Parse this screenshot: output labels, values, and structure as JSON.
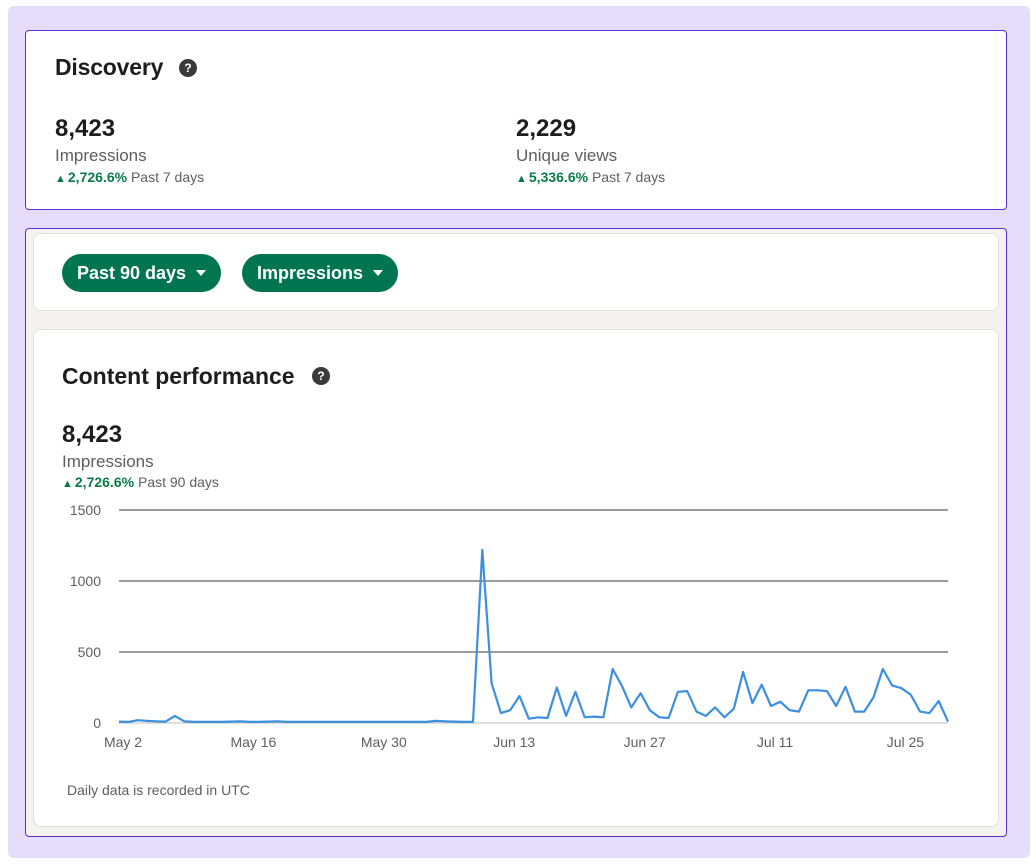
{
  "discovery": {
    "title": "Discovery",
    "help_icon": "question-circle-icon",
    "metrics": [
      {
        "value": "8,423",
        "label": "Impressions",
        "change": "2,726.6%",
        "period": "Past 7 days"
      },
      {
        "value": "2,229",
        "label": "Unique views",
        "change": "5,336.6%",
        "period": "Past 7 days"
      }
    ]
  },
  "filters": {
    "range_label": "Past 90 days",
    "metric_label": "Impressions",
    "dropdown_icon": "caret-down-icon"
  },
  "performance": {
    "title": "Content performance",
    "help_icon": "question-circle-icon",
    "value": "8,423",
    "label": "Impressions",
    "change": "2,726.6%",
    "period": "Past 90 days",
    "footnote": "Daily data is recorded in UTC"
  },
  "colors": {
    "accent_green": "#01754f",
    "positive_green": "#0a7a4a",
    "line_blue": "#3d8fe0",
    "frame_purple": "#5b2ed6",
    "background_lavender": "#e6dcfb"
  },
  "chart_data": {
    "type": "line",
    "x_tick_labels": [
      "May 2",
      "May 16",
      "May 30",
      "Jun 13",
      "Jun 27",
      "Jul 11",
      "Jul 25"
    ],
    "y_tick_labels": [
      "0",
      "500",
      "1000",
      "1500"
    ],
    "ylim": [
      0,
      1500
    ],
    "grid": "horizontal",
    "series": [
      {
        "values": [
          10,
          8,
          20,
          15,
          12,
          10,
          50,
          12,
          8,
          8,
          8,
          8,
          10,
          12,
          8,
          8,
          10,
          12,
          8,
          8,
          8,
          8,
          8,
          8,
          8,
          8,
          8,
          8,
          8,
          8,
          8,
          8,
          8,
          8,
          15,
          12,
          10,
          8,
          8,
          1220,
          280,
          70,
          90,
          190,
          30,
          40,
          35,
          250,
          50,
          220,
          40,
          45,
          40,
          380,
          260,
          110,
          210,
          90,
          40,
          35,
          220,
          225,
          80,
          50,
          110,
          40,
          100,
          360,
          140,
          270,
          120,
          150,
          90,
          80,
          230,
          230,
          225,
          120,
          255,
          80,
          80,
          180,
          380,
          265,
          245,
          200,
          80,
          70,
          155,
          10
        ]
      }
    ]
  }
}
